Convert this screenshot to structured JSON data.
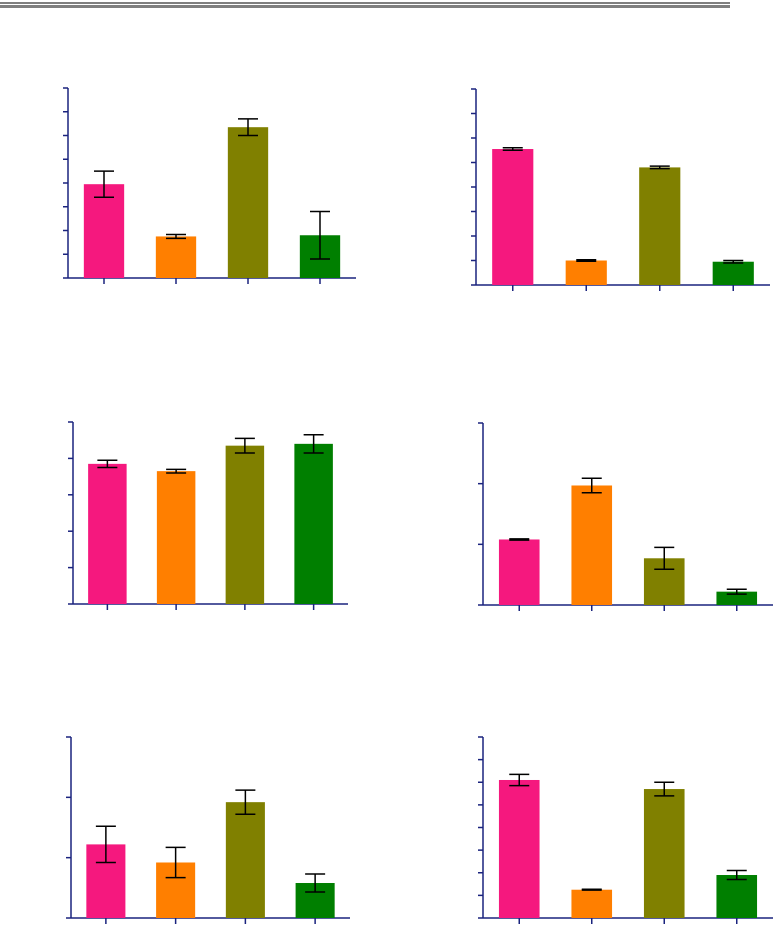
{
  "colors": {
    "header_rule": "#7f7f7f",
    "axis": "#1a237e",
    "error_bar": "#000000",
    "series": [
      "#f5187e",
      "#ff7f00",
      "#808000",
      "#007f00"
    ]
  },
  "chart_data": [
    {
      "type": "bar",
      "ylim": [
        0,
        8
      ],
      "y_ticks": 8,
      "values": [
        3.95,
        1.75,
        6.35,
        1.8
      ],
      "errors": [
        0.55,
        0.08,
        0.35,
        1.0
      ]
    },
    {
      "type": "bar",
      "ylim": [
        0,
        8
      ],
      "y_ticks": 8,
      "values": [
        5.55,
        1.0,
        4.8,
        0.95
      ],
      "errors": [
        0.05,
        0.03,
        0.05,
        0.05
      ]
    },
    {
      "type": "bar",
      "ylim": [
        0,
        5
      ],
      "y_ticks": 5,
      "values": [
        3.85,
        3.65,
        4.35,
        4.4
      ],
      "errors": [
        0.1,
        0.05,
        0.2,
        0.25
      ]
    },
    {
      "type": "bar",
      "ylim": [
        0,
        3
      ],
      "y_ticks": 3,
      "values": [
        1.08,
        1.97,
        0.77,
        0.22
      ],
      "errors": [
        0.01,
        0.12,
        0.18,
        0.04
      ]
    },
    {
      "type": "bar",
      "ylim": [
        0,
        3
      ],
      "y_ticks": 3,
      "values": [
        1.22,
        0.92,
        1.92,
        0.58
      ],
      "errors": [
        0.3,
        0.25,
        0.2,
        0.15
      ]
    },
    {
      "type": "bar",
      "ylim": [
        0,
        8
      ],
      "y_ticks": 8,
      "values": [
        6.1,
        1.25,
        5.7,
        1.9
      ],
      "errors": [
        0.25,
        0.02,
        0.3,
        0.2
      ]
    }
  ]
}
